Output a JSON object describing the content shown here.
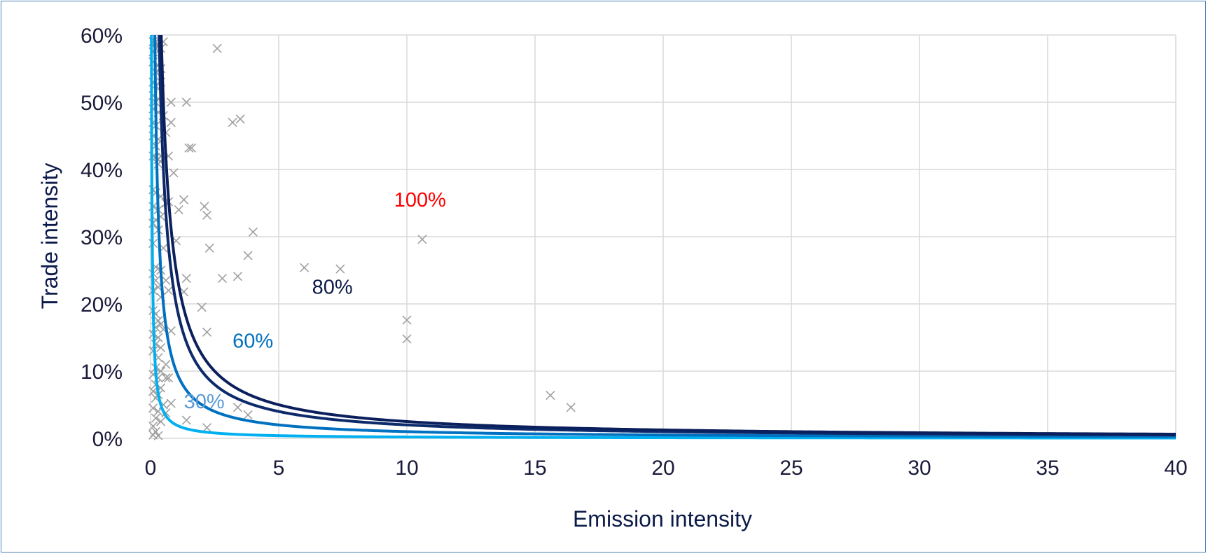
{
  "chart_data": {
    "type": "scatter",
    "title": "",
    "xlabel": "Emission intensity",
    "ylabel": "Trade intensity",
    "xlim": [
      0,
      40
    ],
    "ylim": [
      0,
      0.6
    ],
    "grid": true,
    "x_ticks": [
      0,
      5,
      10,
      15,
      20,
      25,
      30,
      35,
      40
    ],
    "x_tick_labels": [
      "0",
      "5",
      "10",
      "15",
      "20",
      "25",
      "30",
      "35",
      "40"
    ],
    "y_ticks": [
      0,
      0.1,
      0.2,
      0.3,
      0.4,
      0.5,
      0.6
    ],
    "y_tick_labels": [
      "0%",
      "10%",
      "20%",
      "30%",
      "40%",
      "50%",
      "60%"
    ],
    "curves": [
      {
        "label": "30%",
        "k": 0.2,
        "color": "#00b0f0",
        "label_color": "#5b9bd5",
        "label_x": 1.3,
        "label_y": 0.045
      },
      {
        "label": "60%",
        "k": 1.0,
        "color": "#0070c0",
        "label_color": "#0070c0",
        "label_x": 3.2,
        "label_y": 0.135
      },
      {
        "label": "80%",
        "k": 2.0,
        "color": "#0d2a6b",
        "label_color": "#0d1b4a",
        "label_x": 6.3,
        "label_y": 0.215
      },
      {
        "label": "100%",
        "k": 2.5,
        "color": "#0a1f5c",
        "label_color": "#ff0000",
        "label_x": 9.5,
        "label_y": 0.345
      }
    ],
    "marker_color": "#a0a0a0",
    "points": [
      [
        0.1,
        0.59
      ],
      [
        0.2,
        0.59
      ],
      [
        0.3,
        0.585
      ],
      [
        0.5,
        0.59
      ],
      [
        0.1,
        0.575
      ],
      [
        0.2,
        0.58
      ],
      [
        0.4,
        0.58
      ],
      [
        2.6,
        0.58
      ],
      [
        0.1,
        0.56
      ],
      [
        0.3,
        0.555
      ],
      [
        0.2,
        0.545
      ],
      [
        0.4,
        0.55
      ],
      [
        0.1,
        0.53
      ],
      [
        0.2,
        0.525
      ],
      [
        0.3,
        0.52
      ],
      [
        0.4,
        0.53
      ],
      [
        0.1,
        0.51
      ],
      [
        0.3,
        0.505
      ],
      [
        0.2,
        0.5
      ],
      [
        0.8,
        0.5
      ],
      [
        1.4,
        0.5
      ],
      [
        0.1,
        0.49
      ],
      [
        0.3,
        0.485
      ],
      [
        0.5,
        0.48
      ],
      [
        0.1,
        0.47
      ],
      [
        0.2,
        0.465
      ],
      [
        0.8,
        0.47
      ],
      [
        3.2,
        0.47
      ],
      [
        3.5,
        0.475
      ],
      [
        0.1,
        0.45
      ],
      [
        0.3,
        0.445
      ],
      [
        0.6,
        0.455
      ],
      [
        0.2,
        0.435
      ],
      [
        1.5,
        0.432
      ],
      [
        1.6,
        0.432
      ],
      [
        0.1,
        0.42
      ],
      [
        0.2,
        0.418
      ],
      [
        0.3,
        0.415
      ],
      [
        0.4,
        0.42
      ],
      [
        0.5,
        0.417
      ],
      [
        0.7,
        0.42
      ],
      [
        0.3,
        0.408
      ],
      [
        0.9,
        0.395
      ],
      [
        0.1,
        0.37
      ],
      [
        0.2,
        0.365
      ],
      [
        0.4,
        0.36
      ],
      [
        1.3,
        0.355
      ],
      [
        0.6,
        0.35
      ],
      [
        0.7,
        0.352
      ],
      [
        2.1,
        0.345
      ],
      [
        0.1,
        0.345
      ],
      [
        0.3,
        0.34
      ],
      [
        1.1,
        0.34
      ],
      [
        2.2,
        0.332
      ],
      [
        0.2,
        0.325
      ],
      [
        0.4,
        0.33
      ],
      [
        0.1,
        0.32
      ],
      [
        0.3,
        0.31
      ],
      [
        4.0,
        0.307
      ],
      [
        10.6,
        0.296
      ],
      [
        0.1,
        0.29
      ],
      [
        1.0,
        0.294
      ],
      [
        0.5,
        0.283
      ],
      [
        2.3,
        0.283
      ],
      [
        3.8,
        0.272
      ],
      [
        6.0,
        0.254
      ],
      [
        7.4,
        0.252
      ],
      [
        0.2,
        0.255
      ],
      [
        0.4,
        0.25
      ],
      [
        0.1,
        0.245
      ],
      [
        2.8,
        0.238
      ],
      [
        3.4,
        0.241
      ],
      [
        1.4,
        0.238
      ],
      [
        0.6,
        0.235
      ],
      [
        0.2,
        0.235
      ],
      [
        0.3,
        0.225
      ],
      [
        0.1,
        0.22
      ],
      [
        0.7,
        0.22
      ],
      [
        1.3,
        0.218
      ],
      [
        0.4,
        0.21
      ],
      [
        2.0,
        0.195
      ],
      [
        0.1,
        0.19
      ],
      [
        0.2,
        0.185
      ],
      [
        0.3,
        0.175
      ],
      [
        10.0,
        0.176
      ],
      [
        0.4,
        0.17
      ],
      [
        0.2,
        0.165
      ],
      [
        0.5,
        0.162
      ],
      [
        0.8,
        0.16
      ],
      [
        2.2,
        0.158
      ],
      [
        0.1,
        0.155
      ],
      [
        0.3,
        0.15
      ],
      [
        10.0,
        0.148
      ],
      [
        0.2,
        0.14
      ],
      [
        0.4,
        0.135
      ],
      [
        0.1,
        0.13
      ],
      [
        0.3,
        0.12
      ],
      [
        0.6,
        0.11
      ],
      [
        0.2,
        0.105
      ],
      [
        0.4,
        0.1
      ],
      [
        0.1,
        0.095
      ],
      [
        0.3,
        0.09
      ],
      [
        0.6,
        0.09
      ],
      [
        0.7,
        0.09
      ],
      [
        0.2,
        0.08
      ],
      [
        0.4,
        0.075
      ],
      [
        0.1,
        0.07
      ],
      [
        0.3,
        0.065
      ],
      [
        0.2,
        0.06
      ],
      [
        15.6,
        0.064
      ],
      [
        16.4,
        0.046
      ],
      [
        0.5,
        0.05
      ],
      [
        0.8,
        0.052
      ],
      [
        0.1,
        0.045
      ],
      [
        3.4,
        0.046
      ],
      [
        0.3,
        0.04
      ],
      [
        0.6,
        0.038
      ],
      [
        3.8,
        0.035
      ],
      [
        0.2,
        0.03
      ],
      [
        1.4,
        0.027
      ],
      [
        0.4,
        0.025
      ],
      [
        0.1,
        0.018
      ],
      [
        2.2,
        0.016
      ],
      [
        0.2,
        0.01
      ],
      [
        0.1,
        0.005
      ],
      [
        0.3,
        0.004
      ]
    ]
  }
}
